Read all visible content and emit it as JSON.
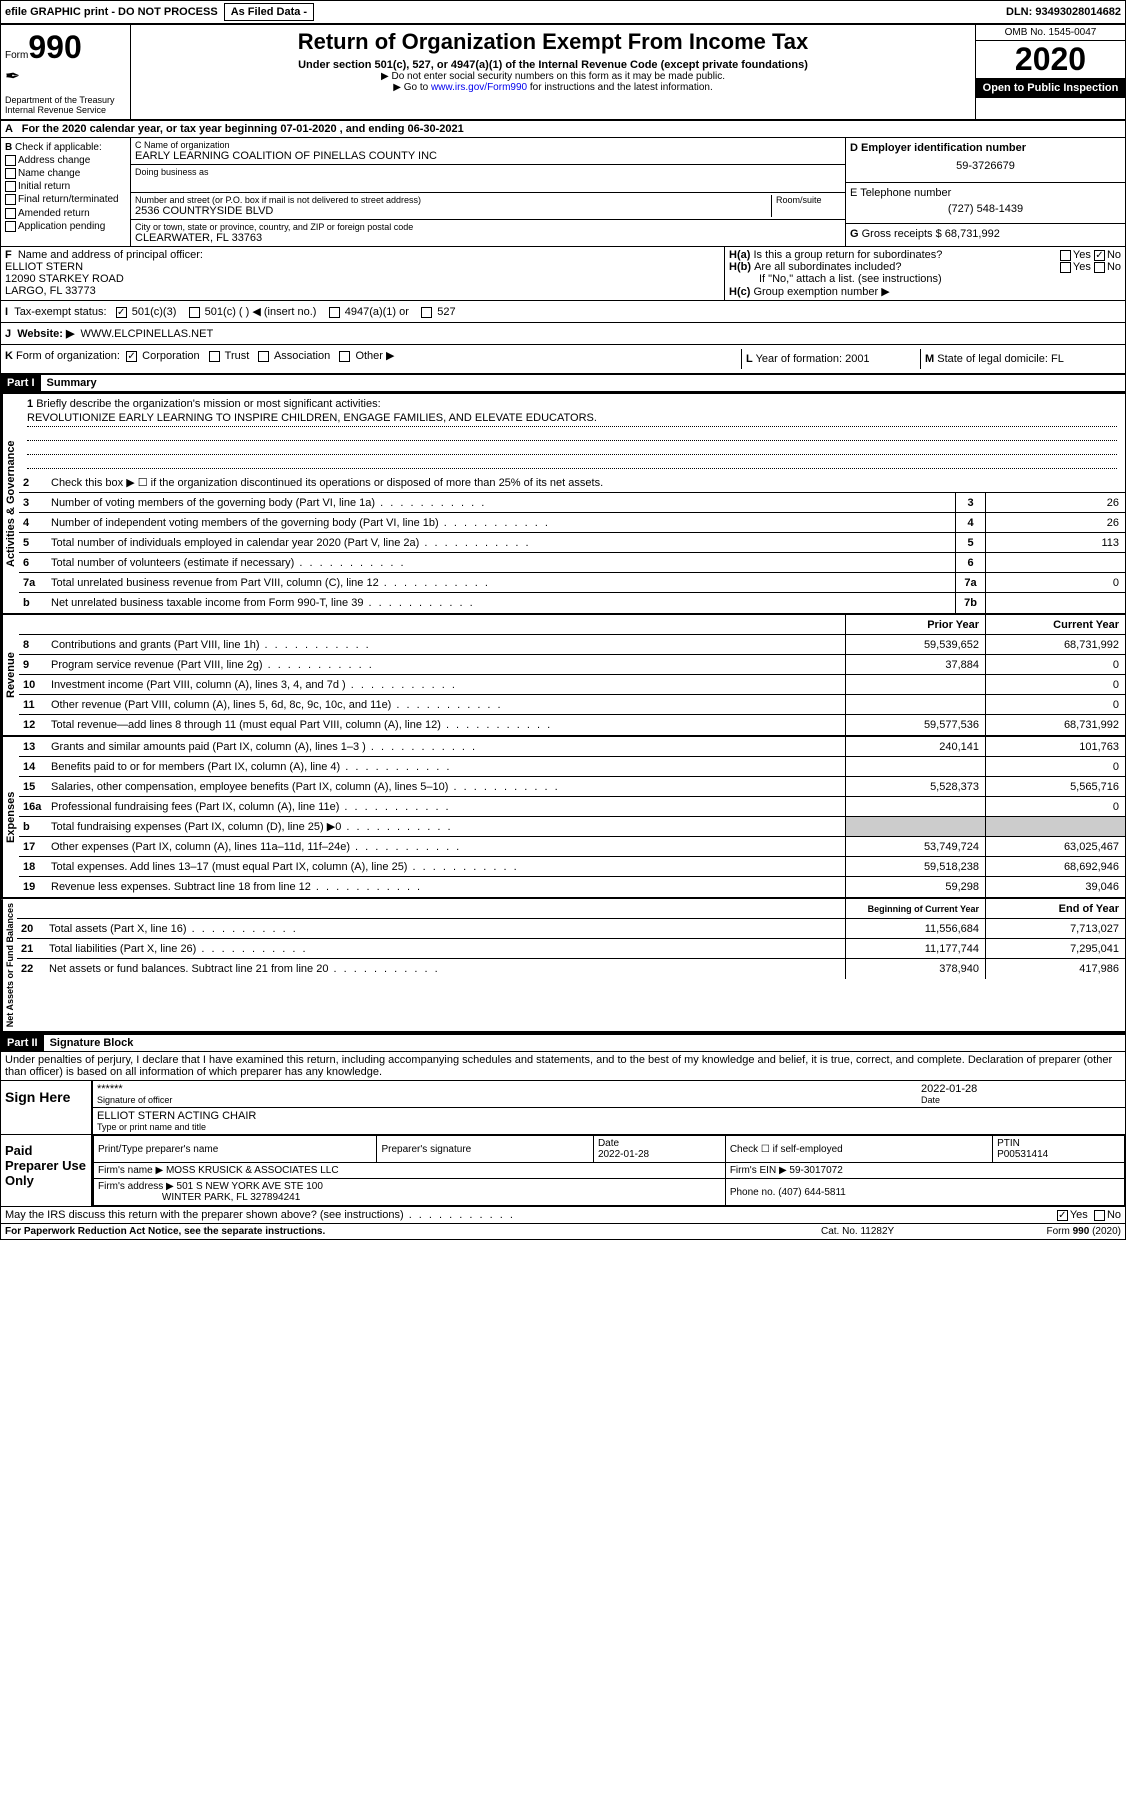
{
  "topbar": {
    "efile": "efile GRAPHIC print - DO NOT PROCESS",
    "asfiled": "As Filed Data -",
    "dln_label": "DLN:",
    "dln": "93493028014682"
  },
  "header": {
    "form_prefix": "Form",
    "form_num": "990",
    "dept": "Department of the Treasury\nInternal Revenue Service",
    "title": "Return of Organization Exempt From Income Tax",
    "sub1": "Under section 501(c), 527, or 4947(a)(1) of the Internal Revenue Code (except private foundations)",
    "sub2": "▶ Do not enter social security numbers on this form as it may be made public.",
    "sub3_pre": "▶ Go to ",
    "sub3_link": "www.irs.gov/Form990",
    "sub3_post": " for instructions and the latest information.",
    "omb": "OMB No. 1545-0047",
    "year": "2020",
    "public": "Open to Public Inspection"
  },
  "rowA": {
    "label": "A",
    "text": "For the 2020 calendar year, or tax year beginning 07-01-2020    , and ending 06-30-2021"
  },
  "colB": {
    "label": "B",
    "check_label": "Check if applicable:",
    "items": [
      "Address change",
      "Name change",
      "Initial return",
      "Final return/terminated",
      "Amended return",
      "Application pending"
    ]
  },
  "colC": {
    "name_label": "C Name of organization",
    "name": "EARLY LEARNING COALITION OF PINELLAS COUNTY INC",
    "dba_label": "Doing business as",
    "street_label": "Number and street (or P.O. box if mail is not delivered to street address)",
    "room_label": "Room/suite",
    "street": "2536 COUNTRYSIDE BLVD",
    "city_label": "City or town, state or province, country, and ZIP or foreign postal code",
    "city": "CLEARWATER, FL  33763"
  },
  "colD": {
    "label": "D Employer identification number",
    "ein": "59-3726679"
  },
  "colE": {
    "label": "E Telephone number",
    "phone": "(727) 548-1439"
  },
  "colG": {
    "label": "G",
    "text": "Gross receipts $",
    "val": "68,731,992"
  },
  "colF": {
    "label": "F",
    "text": "Name and address of principal officer:",
    "name": "ELLIOT STERN",
    "addr1": "12090 STARKEY ROAD",
    "addr2": "LARGO, FL  33773"
  },
  "colH": {
    "a_label": "H(a)",
    "a_text": "Is this a group return for subordinates?",
    "b_label": "H(b)",
    "b_text": "Are all subordinates included?",
    "b_note": "If \"No,\" attach a list. (see instructions)",
    "c_label": "H(c)",
    "c_text": "Group exemption number ▶",
    "yes": "Yes",
    "no": "No"
  },
  "rowI": {
    "label": "I",
    "text": "Tax-exempt status:",
    "opts": [
      "501(c)(3)",
      "501(c) (   ) ◀ (insert no.)",
      "4947(a)(1) or",
      "527"
    ]
  },
  "rowJ": {
    "label": "J",
    "text": "Website: ▶",
    "val": "WWW.ELCPINELLAS.NET"
  },
  "rowK": {
    "label": "K",
    "text": "Form of organization:",
    "opts": [
      "Corporation",
      "Trust",
      "Association",
      "Other ▶"
    ]
  },
  "rowL": {
    "label": "L",
    "text": "Year of formation:",
    "val": "2001"
  },
  "rowM": {
    "label": "M",
    "text": "State of legal domicile:",
    "val": "FL"
  },
  "part1": {
    "label": "Part I",
    "title": "Summary",
    "line1_num": "1",
    "line1": "Briefly describe the organization's mission or most significant activities:",
    "mission": "REVOLUTIONIZE EARLY LEARNING TO INSPIRE CHILDREN, ENGAGE FAMILIES, AND ELEVATE EDUCATORS.",
    "line2_num": "2",
    "line2": "Check this box ▶ ☐ if the organization discontinued its operations or disposed of more than 25% of its net assets.",
    "gov_lines": [
      {
        "n": "3",
        "t": "Number of voting members of the governing body (Part VI, line 1a)",
        "b": "3",
        "v": "26"
      },
      {
        "n": "4",
        "t": "Number of independent voting members of the governing body (Part VI, line 1b)",
        "b": "4",
        "v": "26"
      },
      {
        "n": "5",
        "t": "Total number of individuals employed in calendar year 2020 (Part V, line 2a)",
        "b": "5",
        "v": "113"
      },
      {
        "n": "6",
        "t": "Total number of volunteers (estimate if necessary)",
        "b": "6",
        "v": ""
      },
      {
        "n": "7a",
        "t": "Total unrelated business revenue from Part VIII, column (C), line 12",
        "b": "7a",
        "v": "0"
      },
      {
        "n": "b",
        "t": "Net unrelated business taxable income from Form 990-T, line 39",
        "b": "7b",
        "v": ""
      }
    ],
    "col_prior": "Prior Year",
    "col_current": "Current Year",
    "rev_lines": [
      {
        "n": "8",
        "t": "Contributions and grants (Part VIII, line 1h)",
        "p": "59,539,652",
        "c": "68,731,992"
      },
      {
        "n": "9",
        "t": "Program service revenue (Part VIII, line 2g)",
        "p": "37,884",
        "c": "0"
      },
      {
        "n": "10",
        "t": "Investment income (Part VIII, column (A), lines 3, 4, and 7d )",
        "p": "",
        "c": "0"
      },
      {
        "n": "11",
        "t": "Other revenue (Part VIII, column (A), lines 5, 6d, 8c, 9c, 10c, and 11e)",
        "p": "",
        "c": "0"
      },
      {
        "n": "12",
        "t": "Total revenue—add lines 8 through 11 (must equal Part VIII, column (A), line 12)",
        "p": "59,577,536",
        "c": "68,731,992"
      }
    ],
    "exp_lines": [
      {
        "n": "13",
        "t": "Grants and similar amounts paid (Part IX, column (A), lines 1–3 )",
        "p": "240,141",
        "c": "101,763"
      },
      {
        "n": "14",
        "t": "Benefits paid to or for members (Part IX, column (A), line 4)",
        "p": "",
        "c": "0"
      },
      {
        "n": "15",
        "t": "Salaries, other compensation, employee benefits (Part IX, column (A), lines 5–10)",
        "p": "5,528,373",
        "c": "5,565,716"
      },
      {
        "n": "16a",
        "t": "Professional fundraising fees (Part IX, column (A), line 11e)",
        "p": "",
        "c": "0"
      },
      {
        "n": "b",
        "t": "Total fundraising expenses (Part IX, column (D), line 25) ▶0",
        "p": "shaded",
        "c": "shaded"
      },
      {
        "n": "17",
        "t": "Other expenses (Part IX, column (A), lines 11a–11d, 11f–24e)",
        "p": "53,749,724",
        "c": "63,025,467"
      },
      {
        "n": "18",
        "t": "Total expenses. Add lines 13–17 (must equal Part IX, column (A), line 25)",
        "p": "59,518,238",
        "c": "68,692,946"
      },
      {
        "n": "19",
        "t": "Revenue less expenses. Subtract line 18 from line 12",
        "p": "59,298",
        "c": "39,046"
      }
    ],
    "col_begin": "Beginning of Current Year",
    "col_end": "End of Year",
    "net_lines": [
      {
        "n": "20",
        "t": "Total assets (Part X, line 16)",
        "p": "11,556,684",
        "c": "7,713,027"
      },
      {
        "n": "21",
        "t": "Total liabilities (Part X, line 26)",
        "p": "11,177,744",
        "c": "7,295,041"
      },
      {
        "n": "22",
        "t": "Net assets or fund balances. Subtract line 21 from line 20",
        "p": "378,940",
        "c": "417,986"
      }
    ]
  },
  "part2": {
    "label": "Part II",
    "title": "Signature Block",
    "perjury": "Under penalties of perjury, I declare that I have examined this return, including accompanying schedules and statements, and to the best of my knowledge and belief, it is true, correct, and complete. Declaration of preparer (other than officer) is based on all information of which preparer has any knowledge.",
    "sign_here": "Sign Here",
    "stars": "******",
    "sig_officer": "Signature of officer",
    "date_label": "Date",
    "sig_date": "2022-01-28",
    "name_title": "ELLIOT STERN  ACTING CHAIR",
    "type_label": "Type or print name and title",
    "paid_label": "Paid Preparer Use Only",
    "prep_name_label": "Print/Type preparer's name",
    "prep_sig_label": "Preparer's signature",
    "prep_date": "2022-01-28",
    "self_emp": "Check ☐ if self-employed",
    "ptin_label": "PTIN",
    "ptin": "P00531414",
    "firm_name_label": "Firm's name    ▶",
    "firm_name": "MOSS KRUSICK & ASSOCIATES LLC",
    "firm_ein_label": "Firm's EIN ▶",
    "firm_ein": "59-3017072",
    "firm_addr_label": "Firm's address ▶",
    "firm_addr": "501 S NEW YORK AVE STE 100",
    "firm_addr2": "WINTER PARK, FL  327894241",
    "phone_label": "Phone no.",
    "phone": "(407) 644-5811",
    "discuss": "May the IRS discuss this return with the preparer shown above? (see instructions)",
    "paperwork": "For Paperwork Reduction Act Notice, see the separate instructions.",
    "cat": "Cat. No. 11282Y",
    "form_foot": "Form 990 (2020)"
  },
  "vtabs": {
    "gov": "Activities & Governance",
    "rev": "Revenue",
    "exp": "Expenses",
    "net": "Net Assets or Fund Balances"
  }
}
